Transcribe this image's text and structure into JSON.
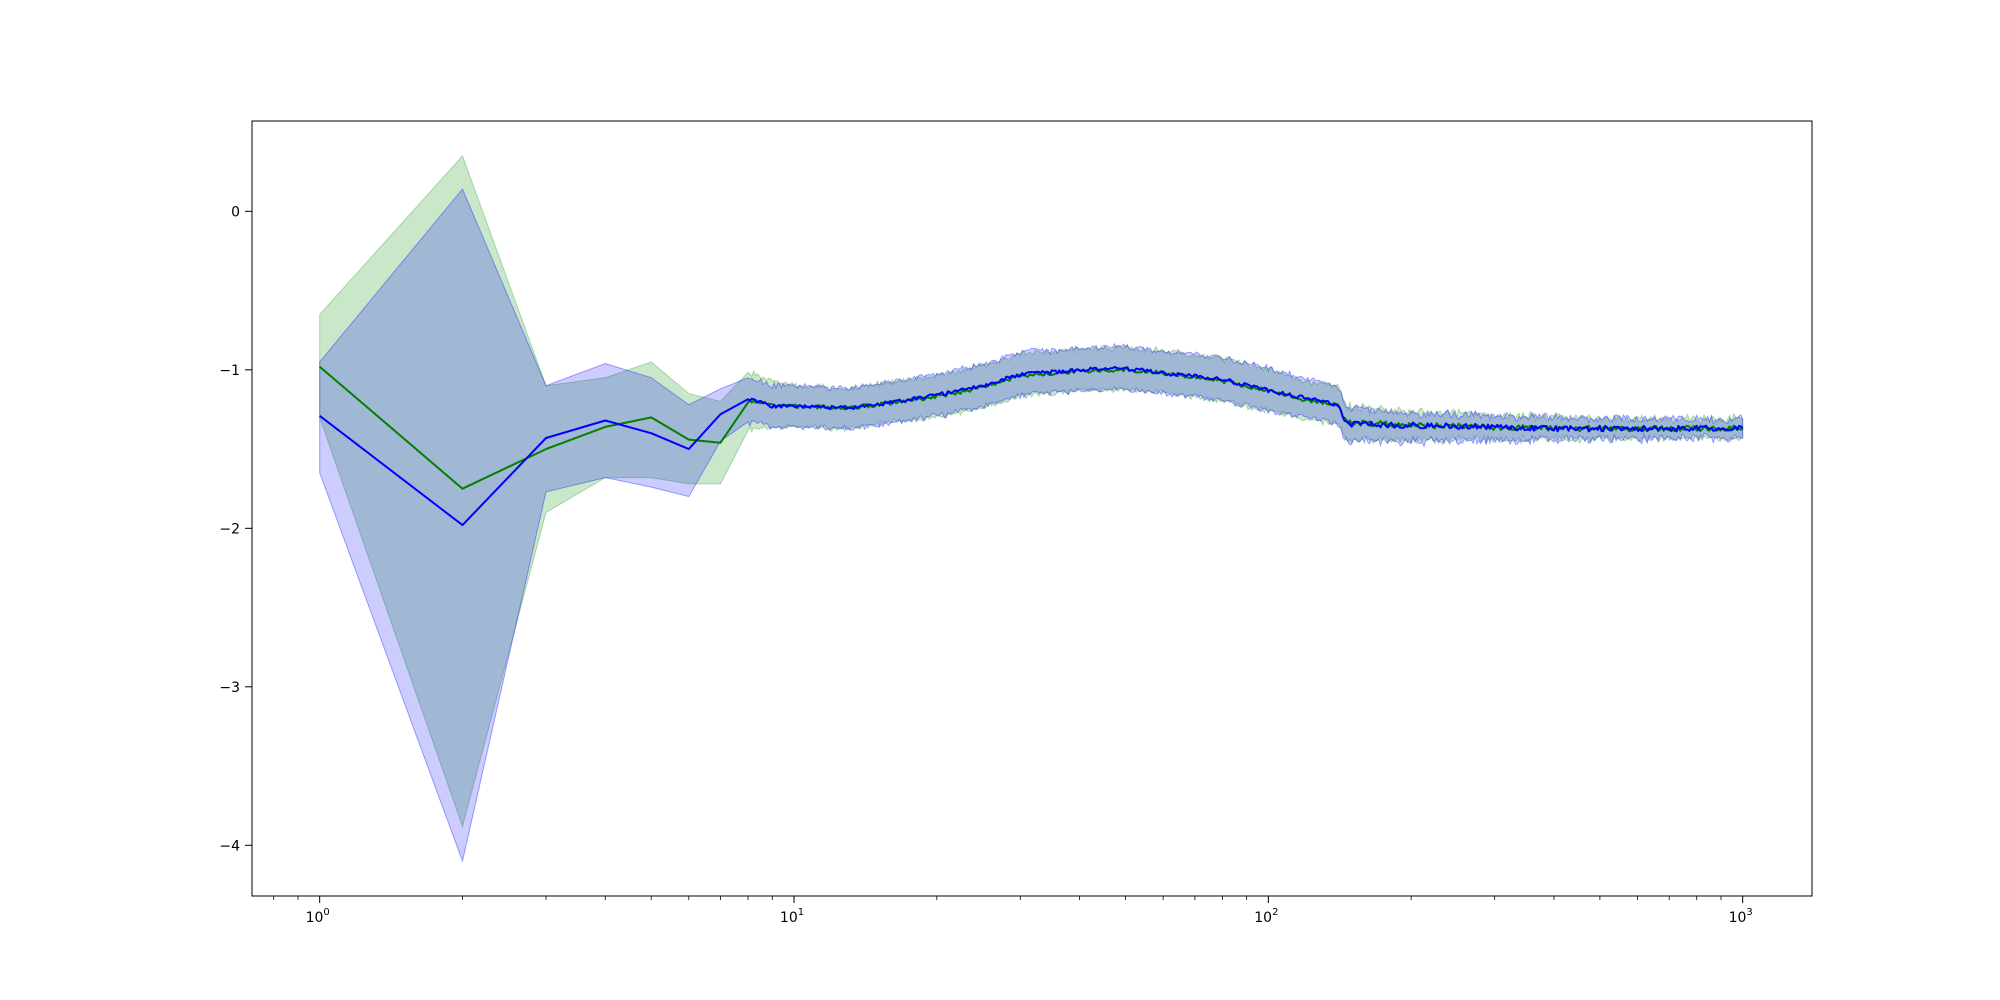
{
  "chart_data": {
    "type": "line",
    "title": "",
    "xlabel": "",
    "ylabel": "",
    "xscale": "log",
    "xlim": [
      0.72,
      1400
    ],
    "ylim": [
      -4.32,
      0.57
    ],
    "grid": false,
    "legend": "none",
    "x_ticks": [
      {
        "value": 1,
        "base": "10",
        "exp": "0"
      },
      {
        "value": 10,
        "base": "10",
        "exp": "1"
      },
      {
        "value": 100,
        "base": "10",
        "exp": "2"
      },
      {
        "value": 1000,
        "base": "10",
        "exp": "3"
      }
    ],
    "y_ticks": [
      {
        "value": 0,
        "label": "0"
      },
      {
        "value": -1,
        "label": "−1"
      },
      {
        "value": -2,
        "label": "−2"
      },
      {
        "value": -3,
        "label": "−3"
      },
      {
        "value": -4,
        "label": "−4"
      }
    ],
    "series": [
      {
        "color": "#008000",
        "band_color": "#2ca02c",
        "band_opacity": 0.25,
        "points": [
          [
            1,
            -0.98,
            -0.65,
            -1.3
          ],
          [
            2,
            -1.75,
            0.35,
            -3.88
          ],
          [
            3,
            -1.5,
            -1.1,
            -1.9
          ],
          [
            4,
            -1.36,
            -1.05,
            -1.68
          ],
          [
            5,
            -1.3,
            -0.95,
            -1.68
          ],
          [
            6,
            -1.44,
            -1.15,
            -1.72
          ],
          [
            7,
            -1.46,
            -1.2,
            -1.72
          ],
          [
            8,
            -1.2,
            -1.02,
            -1.38
          ],
          [
            9,
            -1.22,
            -1.07,
            -1.36
          ],
          [
            10,
            -1.23,
            -1.1,
            -1.36
          ],
          [
            13,
            -1.24,
            -1.12,
            -1.37
          ],
          [
            15,
            -1.22,
            -1.09,
            -1.34
          ],
          [
            20,
            -1.17,
            -1.04,
            -1.3
          ],
          [
            25,
            -1.11,
            -0.97,
            -1.24
          ],
          [
            30,
            -1.04,
            -0.9,
            -1.17
          ],
          [
            40,
            -1.01,
            -0.87,
            -1.13
          ],
          [
            50,
            -1.0,
            -0.86,
            -1.12
          ],
          [
            60,
            -1.02,
            -0.88,
            -1.14
          ],
          [
            80,
            -1.07,
            -0.93,
            -1.2
          ],
          [
            100,
            -1.13,
            -0.99,
            -1.26
          ],
          [
            120,
            -1.19,
            -1.07,
            -1.31
          ],
          [
            140,
            -1.22,
            -1.1,
            -1.34
          ],
          [
            146,
            -1.33,
            -1.23,
            -1.44
          ],
          [
            200,
            -1.35,
            -1.26,
            -1.44
          ],
          [
            400,
            -1.37,
            -1.3,
            -1.44
          ],
          [
            700,
            -1.37,
            -1.31,
            -1.43
          ],
          [
            1000,
            -1.37,
            -1.31,
            -1.43
          ]
        ]
      },
      {
        "color": "#0000ff",
        "band_color": "#0000ff",
        "band_opacity": 0.2,
        "points": [
          [
            1,
            -1.29,
            -0.95,
            -1.65
          ],
          [
            2,
            -1.98,
            0.14,
            -4.1
          ],
          [
            3,
            -1.43,
            -1.1,
            -1.77
          ],
          [
            4,
            -1.32,
            -0.96,
            -1.68
          ],
          [
            5,
            -1.4,
            -1.05,
            -1.74
          ],
          [
            6,
            -1.5,
            -1.22,
            -1.8
          ],
          [
            7,
            -1.28,
            -1.12,
            -1.45
          ],
          [
            8,
            -1.18,
            -1.05,
            -1.33
          ],
          [
            9,
            -1.23,
            -1.1,
            -1.36
          ],
          [
            10,
            -1.23,
            -1.1,
            -1.36
          ],
          [
            13,
            -1.24,
            -1.12,
            -1.37
          ],
          [
            15,
            -1.22,
            -1.09,
            -1.35
          ],
          [
            20,
            -1.16,
            -1.03,
            -1.29
          ],
          [
            25,
            -1.1,
            -0.97,
            -1.23
          ],
          [
            30,
            -1.03,
            -0.89,
            -1.16
          ],
          [
            40,
            -1.0,
            -0.87,
            -1.13
          ],
          [
            50,
            -0.99,
            -0.85,
            -1.12
          ],
          [
            60,
            -1.02,
            -0.88,
            -1.15
          ],
          [
            80,
            -1.06,
            -0.92,
            -1.19
          ],
          [
            100,
            -1.13,
            -0.99,
            -1.26
          ],
          [
            120,
            -1.18,
            -1.06,
            -1.3
          ],
          [
            140,
            -1.22,
            -1.1,
            -1.34
          ],
          [
            146,
            -1.34,
            -1.24,
            -1.45
          ],
          [
            200,
            -1.35,
            -1.27,
            -1.45
          ],
          [
            400,
            -1.37,
            -1.3,
            -1.44
          ],
          [
            700,
            -1.37,
            -1.31,
            -1.43
          ],
          [
            1000,
            -1.37,
            -1.31,
            -1.43
          ]
        ]
      }
    ]
  }
}
